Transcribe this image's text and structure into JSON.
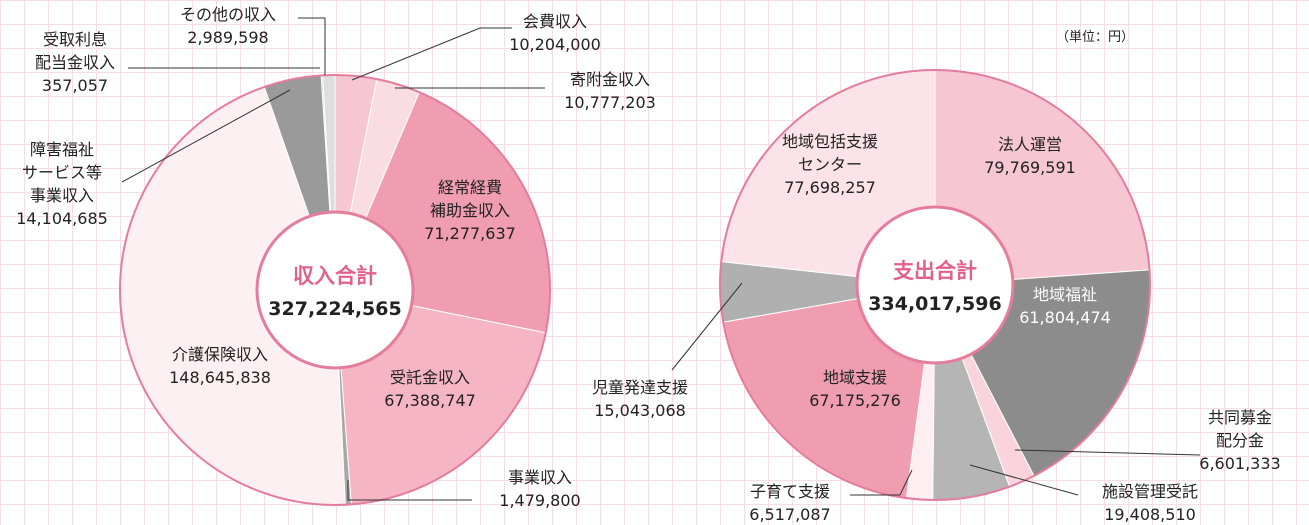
{
  "chart_data": [
    {
      "type": "pie",
      "center_label": "収入合計",
      "total": {
        "value": 327224565,
        "label": "327,224,565"
      },
      "categories": [
        "会費収入",
        "寄附金収入",
        "経常経費\n補助金収入",
        "受託金収入",
        "事業収入",
        "介護保険収入",
        "障害福祉\nサービス等\n事業収入",
        "受取利息\n配当金収入",
        "その他の収入"
      ],
      "values": [
        10204000,
        10777203,
        71277637,
        67388747,
        1479800,
        148645838,
        14104685,
        357057,
        2989598
      ],
      "value_labels": [
        "10,204,000",
        "10,777,203",
        "71,277,637",
        "67,388,747",
        "1,479,800",
        "148,645,838",
        "14,104,685",
        "357,057",
        "2,989,598"
      ],
      "colors": [
        "#f6c7d2",
        "#fadce3",
        "#f09db2",
        "#f5b5c5",
        "#a8a8a8",
        "#fdf0f3",
        "#9a9a9a",
        "#bcbcbc",
        "#dedede"
      ]
    },
    {
      "type": "pie",
      "center_label": "支出合計",
      "total": {
        "value": 334017596,
        "label": "334,017,596"
      },
      "note": "（単位：円）",
      "categories": [
        "法人運営",
        "地域福祉",
        "共同募金\n配分金",
        "施設管理受託",
        "子育て支援",
        "地域支援",
        "児童発達支援",
        "地域包括支援\nセンター"
      ],
      "values": [
        79769591,
        61804474,
        6601333,
        19408510,
        6517087,
        67175276,
        15043068,
        77698257
      ],
      "value_labels": [
        "79,769,591",
        "61,804,474",
        "6,601,333",
        "19,408,510",
        "6,517,087",
        "67,175,276",
        "15,043,068",
        "77,698,257"
      ],
      "colors": [
        "#f6c6d2",
        "#8c8c8c",
        "#fad4dd",
        "#b5b5b5",
        "#fdeef2",
        "#f09db2",
        "#b0b0b0",
        "#fbe3e9"
      ]
    }
  ]
}
